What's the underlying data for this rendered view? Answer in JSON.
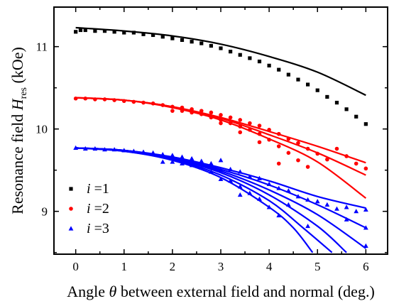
{
  "chart_data": {
    "type": "scatter",
    "xlabel": {
      "prefix": "Angle ",
      "symbol": "θ",
      "suffix": " between external field and normal (deg.)"
    },
    "ylabel": {
      "prefix": "Resonance field ",
      "symbol": "H",
      "subscript": "res",
      "suffix": " (kOe)"
    },
    "xlim": [
      -0.45,
      6.45
    ],
    "ylim": [
      8.48,
      11.48
    ],
    "x_ticks": [
      "0",
      "1",
      "2",
      "3",
      "4",
      "5",
      "6"
    ],
    "y_ticks": [
      "9",
      "10",
      "11"
    ],
    "legend_position": "bottom-left",
    "series": [
      {
        "name": "i =1",
        "legend_label": {
          "var": "i",
          "rest": " =1"
        },
        "color": "#000000",
        "marker": "square",
        "points": [
          [
            0,
            11.18
          ],
          [
            0.1,
            11.2
          ],
          [
            0.2,
            11.2
          ],
          [
            0.4,
            11.19
          ],
          [
            0.6,
            11.19
          ],
          [
            0.8,
            11.18
          ],
          [
            1.0,
            11.17
          ],
          [
            1.2,
            11.17
          ],
          [
            1.4,
            11.15
          ],
          [
            1.6,
            11.14
          ],
          [
            1.8,
            11.12
          ],
          [
            2.0,
            11.1
          ],
          [
            2.2,
            11.08
          ],
          [
            2.4,
            11.06
          ],
          [
            2.6,
            11.04
          ],
          [
            2.8,
            11.01
          ],
          [
            3.0,
            10.98
          ],
          [
            3.2,
            10.94
          ],
          [
            3.4,
            10.9
          ],
          [
            3.6,
            10.86
          ],
          [
            3.8,
            10.82
          ],
          [
            4.0,
            10.77
          ],
          [
            4.2,
            10.72
          ],
          [
            4.4,
            10.66
          ],
          [
            4.6,
            10.6
          ],
          [
            4.8,
            10.54
          ],
          [
            5.0,
            10.47
          ],
          [
            5.2,
            10.39
          ],
          [
            5.4,
            10.32
          ],
          [
            5.6,
            10.24
          ],
          [
            5.8,
            10.15
          ],
          [
            6.0,
            10.06
          ]
        ],
        "curves": [
          [
            [
              0,
              11.23
            ],
            [
              1,
              11.19
            ],
            [
              2,
              11.13
            ],
            [
              3,
              11.03
            ],
            [
              4,
              10.88
            ],
            [
              5,
              10.69
            ],
            [
              6,
              10.41
            ]
          ]
        ]
      },
      {
        "name": "i =2",
        "legend_label": {
          "var": "i",
          "rest": " =2"
        },
        "color": "#ff0000",
        "marker": "circle",
        "points": [
          [
            0,
            10.37
          ],
          [
            0.2,
            10.37
          ],
          [
            0.4,
            10.36
          ],
          [
            0.6,
            10.36
          ],
          [
            0.8,
            10.35
          ],
          [
            1.0,
            10.34
          ],
          [
            1.2,
            10.33
          ],
          [
            1.4,
            10.32
          ],
          [
            1.6,
            10.31
          ],
          [
            1.8,
            10.29
          ],
          [
            2.0,
            10.27
          ],
          [
            2.0,
            10.22
          ],
          [
            2.2,
            10.26
          ],
          [
            2.2,
            10.22
          ],
          [
            2.4,
            10.24
          ],
          [
            2.4,
            10.2
          ],
          [
            2.6,
            10.22
          ],
          [
            2.6,
            10.18
          ],
          [
            2.8,
            10.2
          ],
          [
            2.8,
            10.14
          ],
          [
            3.0,
            10.17
          ],
          [
            3.0,
            10.11
          ],
          [
            3.0,
            10.07
          ],
          [
            3.2,
            10.14
          ],
          [
            3.2,
            10.07
          ],
          [
            3.4,
            10.11
          ],
          [
            3.4,
            10.03
          ],
          [
            3.4,
            9.96
          ],
          [
            3.6,
            10.07
          ],
          [
            3.6,
            9.99
          ],
          [
            3.8,
            10.04
          ],
          [
            3.8,
            9.94
          ],
          [
            3.8,
            9.84
          ],
          [
            4.0,
            9.99
          ],
          [
            4.0,
            9.87
          ],
          [
            4.2,
            9.94
          ],
          [
            4.2,
            9.79
          ],
          [
            4.2,
            9.58
          ],
          [
            4.4,
            9.88
          ],
          [
            4.4,
            9.71
          ],
          [
            4.6,
            9.83
          ],
          [
            4.6,
            9.62
          ],
          [
            4.8,
            9.76
          ],
          [
            4.8,
            9.54
          ],
          [
            5.0,
            9.7
          ],
          [
            5.2,
            9.63
          ],
          [
            5.4,
            9.76
          ],
          [
            5.6,
            9.67
          ],
          [
            5.8,
            9.58
          ],
          [
            6.0,
            9.52
          ]
        ],
        "curves": [
          [
            [
              0,
              10.38
            ],
            [
              1,
              10.35
            ],
            [
              2,
              10.27
            ],
            [
              3,
              10.14
            ],
            [
              4,
              9.97
            ],
            [
              5,
              9.79
            ],
            [
              6,
              9.59
            ]
          ],
          [
            [
              0,
              10.38
            ],
            [
              1,
              10.35
            ],
            [
              2,
              10.27
            ],
            [
              3,
              10.13
            ],
            [
              4,
              9.93
            ],
            [
              5,
              9.71
            ],
            [
              6,
              9.44
            ]
          ],
          [
            [
              0,
              10.38
            ],
            [
              1,
              10.35
            ],
            [
              2,
              10.26
            ],
            [
              3,
              10.11
            ],
            [
              4,
              9.88
            ],
            [
              5,
              9.6
            ],
            [
              6,
              9.16
            ]
          ]
        ]
      },
      {
        "name": "i =3",
        "legend_label": {
          "var": "i",
          "rest": " =3"
        },
        "color": "#0000ff",
        "marker": "triangle",
        "points": [
          [
            0,
            9.77
          ],
          [
            0.2,
            9.76
          ],
          [
            0.4,
            9.76
          ],
          [
            0.6,
            9.75
          ],
          [
            0.8,
            9.75
          ],
          [
            1.0,
            9.74
          ],
          [
            1.2,
            9.73
          ],
          [
            1.4,
            9.72
          ],
          [
            1.6,
            9.71
          ],
          [
            1.8,
            9.69
          ],
          [
            1.8,
            9.6
          ],
          [
            2.0,
            9.68
          ],
          [
            2.0,
            9.6
          ],
          [
            2.2,
            9.66
          ],
          [
            2.2,
            9.58
          ],
          [
            2.4,
            9.64
          ],
          [
            2.4,
            9.56
          ],
          [
            2.6,
            9.61
          ],
          [
            2.6,
            9.53
          ],
          [
            2.8,
            9.58
          ],
          [
            2.8,
            9.48
          ],
          [
            3.0,
            9.62
          ],
          [
            3.0,
            9.5
          ],
          [
            3.0,
            9.39
          ],
          [
            3.2,
            9.51
          ],
          [
            3.2,
            9.37
          ],
          [
            3.4,
            9.48
          ],
          [
            3.4,
            9.3
          ],
          [
            3.4,
            9.2
          ],
          [
            3.6,
            9.42
          ],
          [
            3.6,
            9.22
          ],
          [
            3.8,
            9.4
          ],
          [
            3.8,
            9.15
          ],
          [
            4.0,
            9.33
          ],
          [
            4.0,
            9.05
          ],
          [
            4.2,
            9.28
          ],
          [
            4.2,
            8.95
          ],
          [
            4.4,
            9.25
          ],
          [
            4.4,
            9.08
          ],
          [
            4.6,
            9.18
          ],
          [
            4.8,
            9.14
          ],
          [
            4.8,
            8.82
          ],
          [
            5.0,
            9.12
          ],
          [
            5.2,
            9.08
          ],
          [
            5.4,
            9.03
          ],
          [
            5.6,
            9.05
          ],
          [
            5.6,
            8.9
          ],
          [
            5.8,
            9.0
          ],
          [
            6.0,
            9.02
          ],
          [
            6.0,
            8.8
          ],
          [
            6.0,
            8.58
          ]
        ],
        "curves": [
          [
            [
              0,
              9.77
            ],
            [
              1,
              9.74
            ],
            [
              2,
              9.66
            ],
            [
              3,
              9.53
            ],
            [
              4,
              9.37
            ],
            [
              5,
              9.18
            ],
            [
              6,
              9.04
            ]
          ],
          [
            [
              0,
              9.77
            ],
            [
              1,
              9.74
            ],
            [
              2,
              9.65
            ],
            [
              3,
              9.51
            ],
            [
              4,
              9.32
            ],
            [
              5,
              9.08
            ],
            [
              6,
              8.8
            ]
          ],
          [
            [
              0,
              9.77
            ],
            [
              1,
              9.74
            ],
            [
              2,
              9.65
            ],
            [
              3,
              9.49
            ],
            [
              4,
              9.26
            ],
            [
              5,
              8.96
            ],
            [
              6,
              8.55
            ]
          ],
          [
            [
              0,
              9.77
            ],
            [
              1,
              9.74
            ],
            [
              2,
              9.64
            ],
            [
              3,
              9.47
            ],
            [
              4,
              9.2
            ],
            [
              5,
              8.82
            ],
            [
              5.6,
              8.5
            ]
          ],
          [
            [
              0,
              9.77
            ],
            [
              1,
              9.73
            ],
            [
              2,
              9.63
            ],
            [
              3,
              9.44
            ],
            [
              4,
              9.13
            ],
            [
              4.7,
              8.8
            ],
            [
              5.3,
              8.5
            ]
          ],
          [
            [
              0,
              9.77
            ],
            [
              1,
              9.73
            ],
            [
              2,
              9.62
            ],
            [
              3,
              9.41
            ],
            [
              4,
              9.05
            ],
            [
              4.5,
              8.8
            ],
            [
              4.9,
              8.5
            ]
          ]
        ]
      }
    ]
  }
}
